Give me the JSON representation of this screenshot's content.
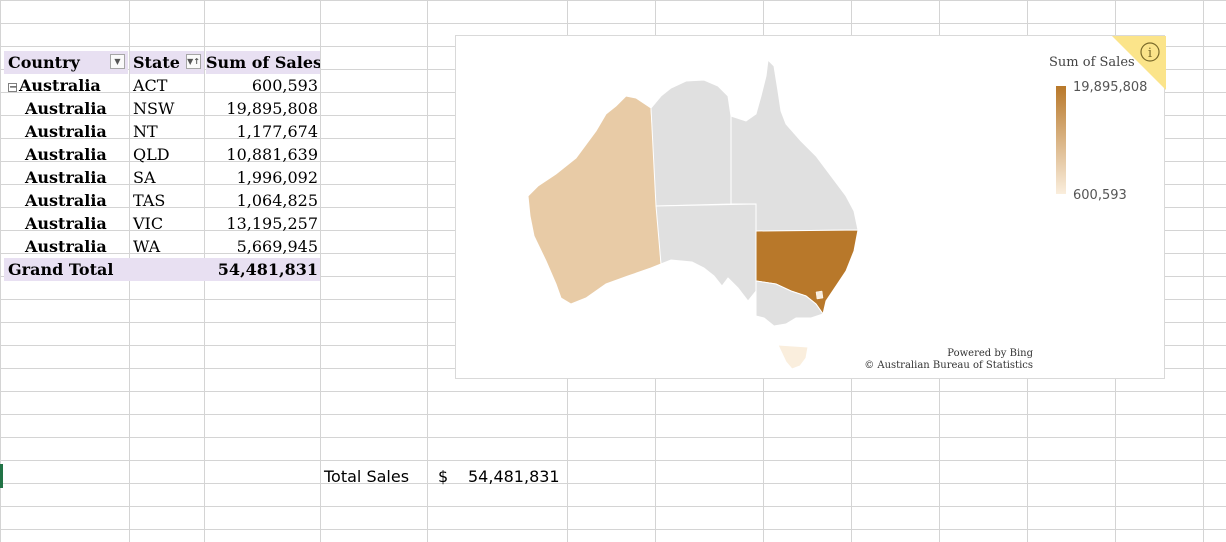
{
  "pivot": {
    "headers": {
      "country": "Country",
      "state": "State",
      "sum": "Sum of Sales"
    },
    "rows": [
      {
        "country": "Australia",
        "state": "ACT",
        "sales": "600,593"
      },
      {
        "country": "Australia",
        "state": "NSW",
        "sales": "19,895,808"
      },
      {
        "country": "Australia",
        "state": "NT",
        "sales": "1,177,674"
      },
      {
        "country": "Australia",
        "state": "QLD",
        "sales": "10,881,639"
      },
      {
        "country": "Australia",
        "state": "SA",
        "sales": "1,996,092"
      },
      {
        "country": "Australia",
        "state": "TAS",
        "sales": "1,064,825"
      },
      {
        "country": "Australia",
        "state": "VIC",
        "sales": "13,195,257"
      },
      {
        "country": "Australia",
        "state": "WA",
        "sales": "5,669,945"
      }
    ],
    "grand_total": {
      "label": "Grand Total",
      "value": "54,481,831"
    }
  },
  "map": {
    "legend_title": "Sum of Sales",
    "legend_max": "19,895,808",
    "legend_min": "600,593",
    "attribution_1": "Powered by Bing",
    "attribution_2": "© Australian Bureau of Statistics",
    "info_icon": "i",
    "colors": {
      "high": "#b8782a",
      "mid": "#e8cba6",
      "low": "#faeedd",
      "nodata": "#e0e0e0"
    }
  },
  "summary": {
    "label": "Total Sales",
    "currency": "$",
    "value": "54,481,831"
  }
}
